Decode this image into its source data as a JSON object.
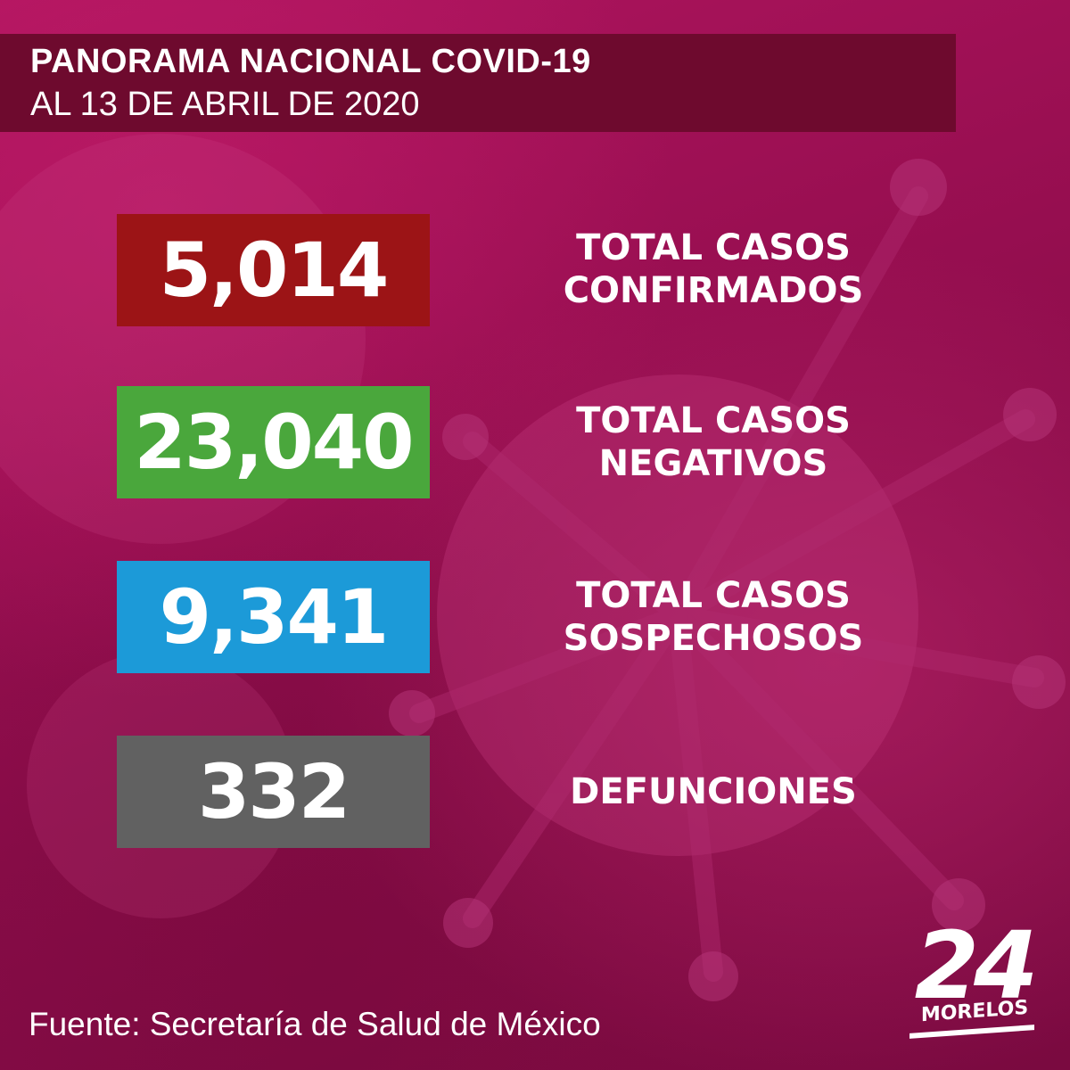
{
  "header": {
    "title": "PANORAMA NACIONAL COVID-19",
    "date": "AL 13 DE ABRIL DE 2020"
  },
  "stats": [
    {
      "value": "5,014",
      "label_line1": "TOTAL CASOS",
      "label_line2": "CONFIRMADOS",
      "color": "#9c1416"
    },
    {
      "value": "23,040",
      "label_line1": "TOTAL CASOS",
      "label_line2": "NEGATIVOS",
      "color": "#4aa73c"
    },
    {
      "value": "9,341",
      "label_line1": "TOTAL CASOS",
      "label_line2": "SOSPECHOSOS",
      "color": "#1c9ad8"
    },
    {
      "value": "332",
      "label_line1": "DEFUNCIONES",
      "label_line2": "",
      "color": "#616161"
    }
  ],
  "source": "Fuente: Secretaría de Salud de México",
  "logo": {
    "number": "24",
    "word": "MORELOS"
  },
  "colors": {
    "background": "#9a0f52",
    "header_band": "#6e0a2e",
    "text": "#ffffff"
  },
  "background_icon": "coronavirus-icon"
}
